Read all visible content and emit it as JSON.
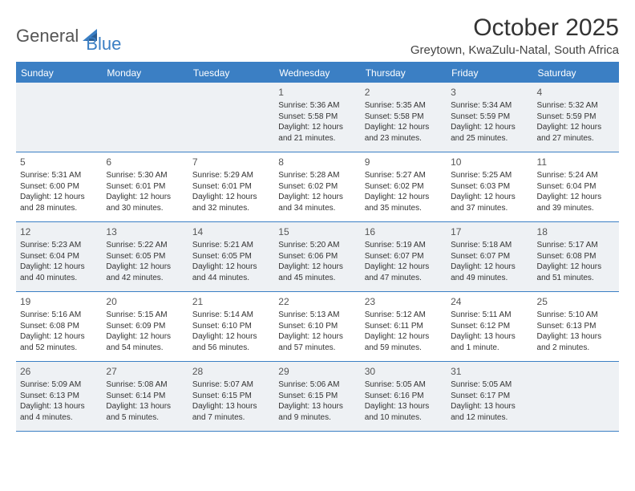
{
  "logo": {
    "text1": "General",
    "text2": "Blue"
  },
  "title": "October 2025",
  "location": "Greytown, KwaZulu-Natal, South Africa",
  "colors": {
    "brand": "#3b7fc4",
    "shade": "#eef1f4",
    "background": "#ffffff",
    "text": "#333333"
  },
  "day_names": [
    "Sunday",
    "Monday",
    "Tuesday",
    "Wednesday",
    "Thursday",
    "Friday",
    "Saturday"
  ],
  "weeks": [
    [
      {
        "n": "",
        "sr": "",
        "ss": "",
        "dl": ""
      },
      {
        "n": "",
        "sr": "",
        "ss": "",
        "dl": ""
      },
      {
        "n": "",
        "sr": "",
        "ss": "",
        "dl": ""
      },
      {
        "n": "1",
        "sr": "Sunrise: 5:36 AM",
        "ss": "Sunset: 5:58 PM",
        "dl": "Daylight: 12 hours and 21 minutes."
      },
      {
        "n": "2",
        "sr": "Sunrise: 5:35 AM",
        "ss": "Sunset: 5:58 PM",
        "dl": "Daylight: 12 hours and 23 minutes."
      },
      {
        "n": "3",
        "sr": "Sunrise: 5:34 AM",
        "ss": "Sunset: 5:59 PM",
        "dl": "Daylight: 12 hours and 25 minutes."
      },
      {
        "n": "4",
        "sr": "Sunrise: 5:32 AM",
        "ss": "Sunset: 5:59 PM",
        "dl": "Daylight: 12 hours and 27 minutes."
      }
    ],
    [
      {
        "n": "5",
        "sr": "Sunrise: 5:31 AM",
        "ss": "Sunset: 6:00 PM",
        "dl": "Daylight: 12 hours and 28 minutes."
      },
      {
        "n": "6",
        "sr": "Sunrise: 5:30 AM",
        "ss": "Sunset: 6:01 PM",
        "dl": "Daylight: 12 hours and 30 minutes."
      },
      {
        "n": "7",
        "sr": "Sunrise: 5:29 AM",
        "ss": "Sunset: 6:01 PM",
        "dl": "Daylight: 12 hours and 32 minutes."
      },
      {
        "n": "8",
        "sr": "Sunrise: 5:28 AM",
        "ss": "Sunset: 6:02 PM",
        "dl": "Daylight: 12 hours and 34 minutes."
      },
      {
        "n": "9",
        "sr": "Sunrise: 5:27 AM",
        "ss": "Sunset: 6:02 PM",
        "dl": "Daylight: 12 hours and 35 minutes."
      },
      {
        "n": "10",
        "sr": "Sunrise: 5:25 AM",
        "ss": "Sunset: 6:03 PM",
        "dl": "Daylight: 12 hours and 37 minutes."
      },
      {
        "n": "11",
        "sr": "Sunrise: 5:24 AM",
        "ss": "Sunset: 6:04 PM",
        "dl": "Daylight: 12 hours and 39 minutes."
      }
    ],
    [
      {
        "n": "12",
        "sr": "Sunrise: 5:23 AM",
        "ss": "Sunset: 6:04 PM",
        "dl": "Daylight: 12 hours and 40 minutes."
      },
      {
        "n": "13",
        "sr": "Sunrise: 5:22 AM",
        "ss": "Sunset: 6:05 PM",
        "dl": "Daylight: 12 hours and 42 minutes."
      },
      {
        "n": "14",
        "sr": "Sunrise: 5:21 AM",
        "ss": "Sunset: 6:05 PM",
        "dl": "Daylight: 12 hours and 44 minutes."
      },
      {
        "n": "15",
        "sr": "Sunrise: 5:20 AM",
        "ss": "Sunset: 6:06 PM",
        "dl": "Daylight: 12 hours and 45 minutes."
      },
      {
        "n": "16",
        "sr": "Sunrise: 5:19 AM",
        "ss": "Sunset: 6:07 PM",
        "dl": "Daylight: 12 hours and 47 minutes."
      },
      {
        "n": "17",
        "sr": "Sunrise: 5:18 AM",
        "ss": "Sunset: 6:07 PM",
        "dl": "Daylight: 12 hours and 49 minutes."
      },
      {
        "n": "18",
        "sr": "Sunrise: 5:17 AM",
        "ss": "Sunset: 6:08 PM",
        "dl": "Daylight: 12 hours and 51 minutes."
      }
    ],
    [
      {
        "n": "19",
        "sr": "Sunrise: 5:16 AM",
        "ss": "Sunset: 6:08 PM",
        "dl": "Daylight: 12 hours and 52 minutes."
      },
      {
        "n": "20",
        "sr": "Sunrise: 5:15 AM",
        "ss": "Sunset: 6:09 PM",
        "dl": "Daylight: 12 hours and 54 minutes."
      },
      {
        "n": "21",
        "sr": "Sunrise: 5:14 AM",
        "ss": "Sunset: 6:10 PM",
        "dl": "Daylight: 12 hours and 56 minutes."
      },
      {
        "n": "22",
        "sr": "Sunrise: 5:13 AM",
        "ss": "Sunset: 6:10 PM",
        "dl": "Daylight: 12 hours and 57 minutes."
      },
      {
        "n": "23",
        "sr": "Sunrise: 5:12 AM",
        "ss": "Sunset: 6:11 PM",
        "dl": "Daylight: 12 hours and 59 minutes."
      },
      {
        "n": "24",
        "sr": "Sunrise: 5:11 AM",
        "ss": "Sunset: 6:12 PM",
        "dl": "Daylight: 13 hours and 1 minute."
      },
      {
        "n": "25",
        "sr": "Sunrise: 5:10 AM",
        "ss": "Sunset: 6:13 PM",
        "dl": "Daylight: 13 hours and 2 minutes."
      }
    ],
    [
      {
        "n": "26",
        "sr": "Sunrise: 5:09 AM",
        "ss": "Sunset: 6:13 PM",
        "dl": "Daylight: 13 hours and 4 minutes."
      },
      {
        "n": "27",
        "sr": "Sunrise: 5:08 AM",
        "ss": "Sunset: 6:14 PM",
        "dl": "Daylight: 13 hours and 5 minutes."
      },
      {
        "n": "28",
        "sr": "Sunrise: 5:07 AM",
        "ss": "Sunset: 6:15 PM",
        "dl": "Daylight: 13 hours and 7 minutes."
      },
      {
        "n": "29",
        "sr": "Sunrise: 5:06 AM",
        "ss": "Sunset: 6:15 PM",
        "dl": "Daylight: 13 hours and 9 minutes."
      },
      {
        "n": "30",
        "sr": "Sunrise: 5:05 AM",
        "ss": "Sunset: 6:16 PM",
        "dl": "Daylight: 13 hours and 10 minutes."
      },
      {
        "n": "31",
        "sr": "Sunrise: 5:05 AM",
        "ss": "Sunset: 6:17 PM",
        "dl": "Daylight: 13 hours and 12 minutes."
      },
      {
        "n": "",
        "sr": "",
        "ss": "",
        "dl": ""
      }
    ]
  ]
}
